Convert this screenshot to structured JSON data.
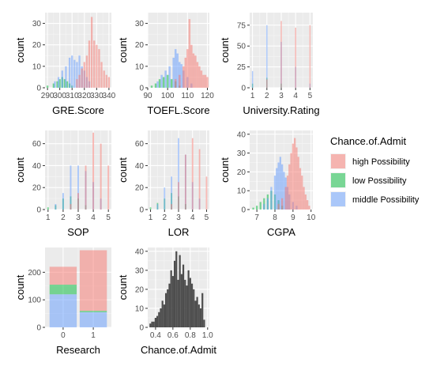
{
  "colors": {
    "high": "#F8766D",
    "low": "#00BA38",
    "middle": "#619CFF",
    "panel_bg": "#EBEBEB",
    "grid_major": "#FFFFFF",
    "dark_hist": "#4D4D4D"
  },
  "legend": {
    "title": "Chance.of.Admit",
    "items": [
      {
        "key": "high",
        "label": "high Possibility"
      },
      {
        "key": "low",
        "label": "low Possibility"
      },
      {
        "key": "middle",
        "label": "middle Possibility"
      }
    ]
  },
  "chart_data": [
    {
      "id": "gre",
      "type": "histogram",
      "xlabel": "GRE.Score",
      "ylabel": "count",
      "xlim": [
        288,
        342
      ],
      "ylim": [
        0,
        35
      ],
      "xticks": [
        {
          "v": 290,
          "label": "290"
        },
        {
          "v": 300,
          "label": "300"
        },
        {
          "v": 310,
          "label": "310"
        },
        {
          "v": 320,
          "label": "320"
        },
        {
          "v": 330,
          "label": "330"
        },
        {
          "v": 340,
          "label": "340"
        }
      ],
      "yticks": [
        0,
        10,
        20,
        30
      ],
      "binwidth": 1.5,
      "series": [
        {
          "group": "low",
          "x": [
            290,
            295,
            298,
            300,
            302,
            304,
            306,
            308,
            310
          ],
          "values": [
            1,
            2,
            3,
            4,
            5,
            4,
            3,
            2,
            1
          ]
        },
        {
          "group": "middle",
          "x": [
            296,
            299,
            302,
            305,
            308,
            310,
            312,
            314,
            316,
            318,
            320,
            322,
            324
          ],
          "values": [
            3,
            5,
            8,
            10,
            14,
            15,
            13,
            12,
            15,
            10,
            8,
            5,
            3
          ]
        },
        {
          "group": "high",
          "x": [
            314,
            316,
            318,
            320,
            322,
            324,
            326,
            328,
            330,
            332,
            334,
            336,
            338,
            340
          ],
          "values": [
            4,
            6,
            9,
            12,
            15,
            22,
            33,
            22,
            20,
            18,
            12,
            8,
            6,
            5
          ]
        }
      ]
    },
    {
      "id": "toefl",
      "type": "histogram",
      "xlabel": "TOEFL.Score",
      "ylabel": "count",
      "xlim": [
        90,
        121
      ],
      "ylim": [
        0,
        35
      ],
      "xticks": [
        {
          "v": 90,
          "label": "90"
        },
        {
          "v": 100,
          "label": "100"
        },
        {
          "v": 110,
          "label": "110"
        },
        {
          "v": 120,
          "label": "120"
        }
      ],
      "yticks": [
        0,
        10,
        20,
        30
      ],
      "binwidth": 1,
      "series": [
        {
          "group": "low",
          "x": [
            92,
            94,
            96,
            98,
            100,
            102,
            104,
            106
          ],
          "values": [
            1,
            2,
            4,
            5,
            6,
            4,
            3,
            1
          ]
        },
        {
          "group": "middle",
          "x": [
            95,
            97,
            99,
            101,
            103,
            104,
            105,
            106,
            107,
            108,
            110,
            112
          ],
          "values": [
            3,
            6,
            8,
            10,
            14,
            18,
            16,
            12,
            11,
            8,
            5,
            2
          ]
        },
        {
          "group": "high",
          "x": [
            104,
            106,
            108,
            109,
            110,
            111,
            112,
            113,
            114,
            115,
            116,
            117,
            118,
            119,
            120
          ],
          "values": [
            4,
            6,
            10,
            14,
            18,
            32,
            20,
            16,
            15,
            12,
            10,
            8,
            6,
            6,
            5
          ]
        }
      ]
    },
    {
      "id": "univ",
      "type": "histogram",
      "xlabel": "University.Rating",
      "ylabel": "count",
      "xlim": [
        0.8,
        5.2
      ],
      "ylim": [
        0,
        90
      ],
      "xticks": [
        {
          "v": 1,
          "label": "1"
        },
        {
          "v": 2,
          "label": "2"
        },
        {
          "v": 3,
          "label": "3"
        },
        {
          "v": 4,
          "label": "4"
        },
        {
          "v": 5,
          "label": "5"
        }
      ],
      "yticks": [
        0,
        25,
        50,
        75
      ],
      "binwidth": 0.08,
      "series": [
        {
          "group": "low",
          "x": [
            1,
            2,
            3
          ],
          "values": [
            5,
            12,
            5
          ]
        },
        {
          "group": "middle",
          "x": [
            1,
            2,
            3,
            4,
            5
          ],
          "values": [
            20,
            75,
            55,
            25,
            5
          ]
        },
        {
          "group": "high",
          "x": [
            2,
            3,
            4,
            5
          ],
          "values": [
            10,
            80,
            72,
            75
          ]
        }
      ]
    },
    {
      "id": "sop",
      "type": "histogram",
      "xlabel": "SOP",
      "ylabel": "count",
      "xlim": [
        0.8,
        5.2
      ],
      "ylim": [
        0,
        72
      ],
      "xticks": [
        {
          "v": 1,
          "label": "1"
        },
        {
          "v": 2,
          "label": "2"
        },
        {
          "v": 3,
          "label": "3"
        },
        {
          "v": 4,
          "label": "4"
        },
        {
          "v": 5,
          "label": "5"
        }
      ],
      "yticks": [
        0,
        20,
        40,
        60
      ],
      "binwidth": 0.1,
      "series": [
        {
          "group": "low",
          "x": [
            1,
            1.5,
            2,
            2.5,
            3,
            3.5
          ],
          "values": [
            2,
            4,
            10,
            12,
            10,
            4
          ]
        },
        {
          "group": "middle",
          "x": [
            1.5,
            2,
            2.5,
            3,
            3.5,
            4,
            4.5
          ],
          "values": [
            5,
            15,
            40,
            40,
            35,
            25,
            10
          ]
        },
        {
          "group": "high",
          "x": [
            2.5,
            3,
            3.5,
            4,
            4.5,
            5
          ],
          "values": [
            5,
            15,
            40,
            70,
            60,
            40
          ]
        }
      ]
    },
    {
      "id": "lor",
      "type": "histogram",
      "xlabel": "LOR",
      "ylabel": "count",
      "xlim": [
        0.8,
        5.2
      ],
      "ylim": [
        0,
        72
      ],
      "xticks": [
        {
          "v": 1,
          "label": "1"
        },
        {
          "v": 2,
          "label": "2"
        },
        {
          "v": 3,
          "label": "3"
        },
        {
          "v": 4,
          "label": "4"
        },
        {
          "v": 5,
          "label": "5"
        }
      ],
      "yticks": [
        0,
        20,
        40,
        60
      ],
      "binwidth": 0.1,
      "series": [
        {
          "group": "low",
          "x": [
            1,
            1.5,
            2,
            2.5,
            3,
            3.5
          ],
          "values": [
            2,
            6,
            10,
            15,
            12,
            5
          ]
        },
        {
          "group": "middle",
          "x": [
            1.5,
            2,
            2.5,
            3,
            3.5,
            4,
            4.5
          ],
          "values": [
            5,
            20,
            30,
            65,
            50,
            25,
            10
          ]
        },
        {
          "group": "high",
          "x": [
            2.5,
            3,
            3.5,
            4,
            4.5,
            5
          ],
          "values": [
            5,
            25,
            50,
            65,
            55,
            30
          ]
        }
      ]
    },
    {
      "id": "cgpa",
      "type": "histogram",
      "xlabel": "CGPA",
      "ylabel": "count",
      "xlim": [
        6.6,
        10.1
      ],
      "ylim": [
        0,
        42
      ],
      "xticks": [
        {
          "v": 7,
          "label": "7"
        },
        {
          "v": 8,
          "label": "8"
        },
        {
          "v": 9,
          "label": "9"
        },
        {
          "v": 10,
          "label": "10"
        }
      ],
      "yticks": [
        0,
        10,
        20,
        30,
        40
      ],
      "binwidth": 0.1,
      "series": [
        {
          "group": "low",
          "x": [
            6.8,
            7.0,
            7.2,
            7.4,
            7.6,
            7.8,
            8.0,
            8.2,
            8.4
          ],
          "values": [
            1,
            2,
            4,
            6,
            8,
            10,
            8,
            5,
            2
          ]
        },
        {
          "group": "middle",
          "x": [
            7.4,
            7.6,
            7.8,
            8.0,
            8.1,
            8.2,
            8.3,
            8.4,
            8.5,
            8.6,
            8.7,
            8.8,
            9.0,
            9.2
          ],
          "values": [
            3,
            6,
            12,
            18,
            22,
            25,
            28,
            24,
            20,
            17,
            12,
            8,
            4,
            2
          ]
        },
        {
          "group": "high",
          "x": [
            8.2,
            8.4,
            8.6,
            8.7,
            8.8,
            8.9,
            9.0,
            9.1,
            9.2,
            9.3,
            9.4,
            9.5,
            9.6,
            9.7,
            9.8,
            9.9
          ],
          "values": [
            3,
            6,
            12,
            18,
            24,
            30,
            35,
            38,
            33,
            28,
            22,
            18,
            12,
            8,
            5,
            2
          ]
        }
      ]
    },
    {
      "id": "research",
      "type": "stacked_bar",
      "xlabel": "Research",
      "ylabel": "count",
      "categories": [
        "0",
        "1"
      ],
      "xlim": [
        -0.6,
        1.6
      ],
      "ylim": [
        0,
        290
      ],
      "xticks": [
        {
          "v": 0,
          "label": "0"
        },
        {
          "v": 1,
          "label": "1"
        }
      ],
      "yticks": [
        0,
        100,
        200
      ],
      "segments": [
        {
          "group": "middle",
          "values": [
            120,
            55
          ]
        },
        {
          "group": "low",
          "values": [
            35,
            5
          ]
        },
        {
          "group": "high",
          "values": [
            65,
            220
          ]
        }
      ]
    },
    {
      "id": "admit",
      "type": "histogram",
      "xlabel": "Chance.of.Admit",
      "ylabel": "count",
      "xlim": [
        0.31,
        1.02
      ],
      "ylim": [
        0,
        42
      ],
      "xticks": [
        {
          "v": 0.4,
          "label": "0.4"
        },
        {
          "v": 0.6,
          "label": "0.6"
        },
        {
          "v": 0.8,
          "label": "0.8"
        },
        {
          "v": 1.0,
          "label": "1.0"
        }
      ],
      "yticks": [
        0,
        10,
        20,
        30,
        40
      ],
      "binwidth": 0.02,
      "series": [
        {
          "group": "dark",
          "x": [
            0.34,
            0.36,
            0.38,
            0.4,
            0.42,
            0.44,
            0.46,
            0.48,
            0.5,
            0.52,
            0.54,
            0.56,
            0.58,
            0.6,
            0.62,
            0.64,
            0.66,
            0.68,
            0.7,
            0.72,
            0.74,
            0.76,
            0.78,
            0.8,
            0.82,
            0.84,
            0.86,
            0.88,
            0.9,
            0.92,
            0.94,
            0.96
          ],
          "values": [
            2,
            3,
            3,
            5,
            6,
            8,
            10,
            14,
            12,
            18,
            20,
            23,
            30,
            27,
            35,
            40,
            25,
            38,
            28,
            33,
            25,
            22,
            30,
            26,
            23,
            20,
            14,
            16,
            12,
            10,
            18,
            4
          ]
        }
      ]
    }
  ]
}
